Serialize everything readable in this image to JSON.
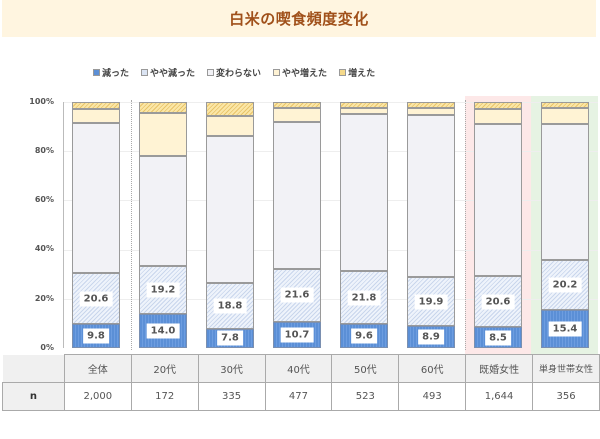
{
  "title": "白米の喫食頻度変化",
  "legend": [
    {
      "label": "減った",
      "color": "#5b8fd6"
    },
    {
      "label": "やや減った",
      "color": "#dbe4f3"
    },
    {
      "label": "変わらない",
      "color": "#f2f2f6"
    },
    {
      "label": "やや増えた",
      "color": "#fff3d4"
    },
    {
      "label": "増えた",
      "color": "#f5d98a"
    }
  ],
  "yticks": [
    "100%",
    "80%",
    "60%",
    "40%",
    "20%",
    "0%"
  ],
  "table": {
    "row_label": "n",
    "columns": [
      "全体",
      "20代",
      "30代",
      "40代",
      "50代",
      "60代",
      "既婚女性",
      "単身世帯女性"
    ],
    "n_values": [
      "2,000",
      "172",
      "335",
      "477",
      "523",
      "493",
      "1,644",
      "356"
    ]
  },
  "labels": {
    "dec": [
      "9.8",
      "14.0",
      "7.8",
      "10.7",
      "9.6",
      "8.9",
      "8.5",
      "15.4"
    ],
    "sdec": [
      "20.6",
      "19.2",
      "18.8",
      "21.6",
      "21.8",
      "19.9",
      "20.6",
      "20.2"
    ]
  },
  "chart_data": {
    "type": "bar",
    "stacked": true,
    "percent": true,
    "title": "白米の喫食頻度変化",
    "xlabel": "",
    "ylabel": "",
    "ylim": [
      0,
      100
    ],
    "yticks": [
      0,
      20,
      40,
      60,
      80,
      100
    ],
    "legend_position": "top",
    "categories": [
      "全体",
      "20代",
      "30代",
      "40代",
      "50代",
      "60代",
      "既婚女性",
      "単身世帯女性"
    ],
    "series": [
      {
        "name": "減った",
        "values": [
          9.8,
          14.0,
          7.8,
          10.7,
          9.6,
          8.9,
          8.5,
          15.4
        ]
      },
      {
        "name": "やや減った",
        "values": [
          20.6,
          19.2,
          18.8,
          21.6,
          21.8,
          19.9,
          20.6,
          20.2
        ]
      },
      {
        "name": "変わらない",
        "values": [
          61.1,
          44.8,
          59.4,
          59.7,
          63.7,
          65.9,
          62.0,
          55.5
        ]
      },
      {
        "name": "やや増えた",
        "values": [
          5.6,
          17.5,
          8.3,
          5.6,
          2.5,
          2.9,
          6.1,
          6.5
        ]
      },
      {
        "name": "増えた",
        "values": [
          2.9,
          4.5,
          5.7,
          2.4,
          2.4,
          2.4,
          2.8,
          2.4
        ]
      }
    ],
    "n": [
      2000,
      172,
      335,
      477,
      523,
      493,
      1644,
      356
    ]
  }
}
